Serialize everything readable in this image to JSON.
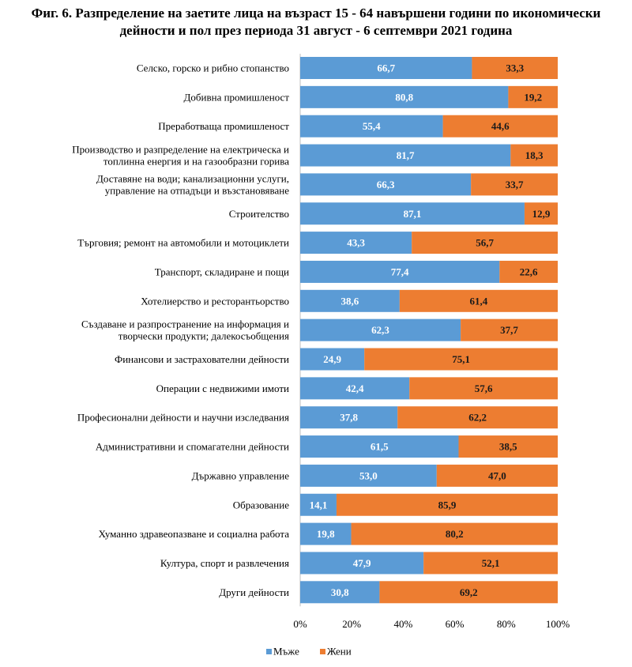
{
  "chart_data": {
    "type": "bar",
    "orientation": "horizontal",
    "stacked": "percent",
    "title": "Фиг. 6. Разпределение на заетите лица на възраст 15 - 64 навършени години по икономически дейности и пол през периода 31 август - 6 септември 2021 година",
    "title_lines": [
      "Фиг. 6. Разпределение на заетите лица на възраст 15 - 64 навършени години по икономически",
      "дейности и пол през периода 31 август - 6 септември 2021 година"
    ],
    "categories": [
      [
        "Селско, горско и рибно стопанство"
      ],
      [
        "Добивна промишленост"
      ],
      [
        "Преработваща промишленост"
      ],
      [
        "Производство и разпределение  на електрическа и",
        "топлинна енергия и на газообразни горива"
      ],
      [
        "Доставяне на води; канализационни  услуги,",
        "управление на отпадъци и възстановяване"
      ],
      [
        "Строителство"
      ],
      [
        "Търговия; ремонт на автомобили и мотоциклети"
      ],
      [
        "Транспорт, складиране и пощи"
      ],
      [
        "Хотелиерство и ресторантьорство"
      ],
      [
        "Създаване и разпространение  на информация и",
        "творчески продукти; далекосъобщения"
      ],
      [
        "Финансови и застрахователни дейности"
      ],
      [
        "Операции с недвижими имоти"
      ],
      [
        "Професионални дейности и научни изследвания"
      ],
      [
        "Административни и спомагателни дейности"
      ],
      [
        "Държавно управление"
      ],
      [
        "Образование"
      ],
      [
        "Хуманно здравеопазване и социална работа"
      ],
      [
        "Култура, спорт и развлечения"
      ],
      [
        "Други дейности"
      ]
    ],
    "series": [
      {
        "name": "Мъже",
        "color": "#5b9bd5",
        "values": [
          66.7,
          80.8,
          55.4,
          81.7,
          66.3,
          87.1,
          43.3,
          77.4,
          38.6,
          62.3,
          24.9,
          42.4,
          37.8,
          61.5,
          53.0,
          14.1,
          19.8,
          47.9,
          30.8
        ],
        "labels": [
          "66,7",
          "80,8",
          "55,4",
          "81,7",
          "66,3",
          "87,1",
          "43,3",
          "77,4",
          "38,6",
          "62,3",
          "24,9",
          "42,4",
          "37,8",
          "61,5",
          "53,0",
          "14,1",
          "19,8",
          "47,9",
          "30,8"
        ]
      },
      {
        "name": "Жени",
        "color": "#ed7d31",
        "values": [
          33.3,
          19.2,
          44.6,
          18.3,
          33.7,
          12.9,
          56.7,
          22.6,
          61.4,
          37.7,
          75.1,
          57.6,
          62.2,
          38.5,
          47.0,
          85.9,
          80.2,
          52.1,
          69.2
        ],
        "labels": [
          "33,3",
          "19,2",
          "44,6",
          "18,3",
          "33,7",
          "12,9",
          "56,7",
          "22,6",
          "61,4",
          "37,7",
          "75,1",
          "57,6",
          "62,2",
          "38,5",
          "47,0",
          "85,9",
          "80,2",
          "52,1",
          "69,2"
        ]
      }
    ],
    "xlim": [
      0,
      100
    ],
    "xticks": [
      "0%",
      "20%",
      "40%",
      "60%",
      "80%",
      "100%"
    ],
    "grid": false,
    "legend": "bottom-center"
  }
}
